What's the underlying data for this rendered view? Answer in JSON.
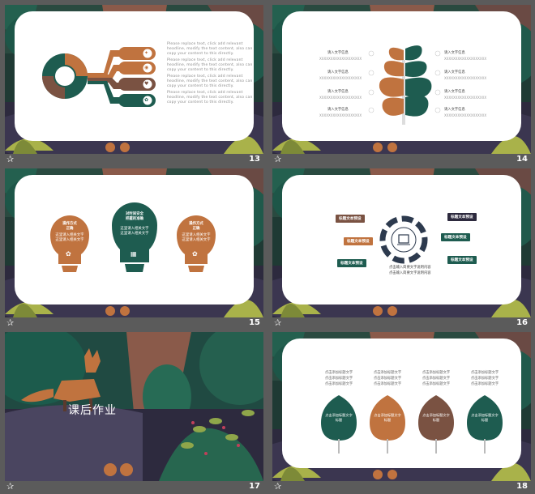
{
  "colors": {
    "green": "#1e5c50",
    "orange": "#c0733f",
    "brown": "#7a5242",
    "dark": "#2d2a3e",
    "bg": "#5b5b5b"
  },
  "slides": [
    {
      "number": "13",
      "paragraph_lines": [
        "Please replace text, click add relevant",
        "headline, modify the text content, also can",
        "copy your content to this directly.",
        "Please replace text, click add relevant",
        "headline, modify the text content, also can",
        "copy your content to this directly.",
        "Please replace text, click add relevant",
        "headline, modify the text content, also can",
        "copy your content to this directly.",
        "Please replace text, click add relevant",
        "headline, modify the text content, also can",
        "copy your content to this directly."
      ],
      "icons": [
        "lightbulb-icon",
        "eye-icon",
        "heart-icon",
        "gear-icon"
      ]
    },
    {
      "number": "14",
      "left_titles": [
        "请入文字信息",
        "请入文字信息",
        "请入文字信息",
        "请入文字信息"
      ],
      "right_titles": [
        "请入文字信息",
        "请入文字信息",
        "请入文字信息",
        "请入文字信息"
      ],
      "sub": "XXXXXXXXXXXXXXXXXXX"
    },
    {
      "number": "15",
      "bulbs": [
        {
          "title": "操作方式\n正确",
          "body": "这里请入相关文字\n这里请入相关文字"
        },
        {
          "title": "对时间安全\n把握的准确",
          "body": "这里请入相关文字\n这里请入相关文字"
        },
        {
          "title": "操作方式\n正确",
          "body": "这里请入相关文字\n这里请入相关文字"
        }
      ]
    },
    {
      "number": "16",
      "labels": [
        "标题文本预设",
        "标题文本预设",
        "标题文本预设",
        "标题文本预设",
        "标题文本预设",
        "标题文本预设"
      ],
      "caption_1": "点击输入简要文字说明内容",
      "caption_2": "点击输入简要文字说明内容"
    },
    {
      "number": "17",
      "title": "课后作业"
    },
    {
      "number": "18",
      "stack_lines": [
        "点击添加标题文字",
        "点击添加标题文字",
        "点击添加标题文字",
        "点击添加标题文字"
      ],
      "leaf_text": "点击添加标题文字\n标题"
    }
  ]
}
